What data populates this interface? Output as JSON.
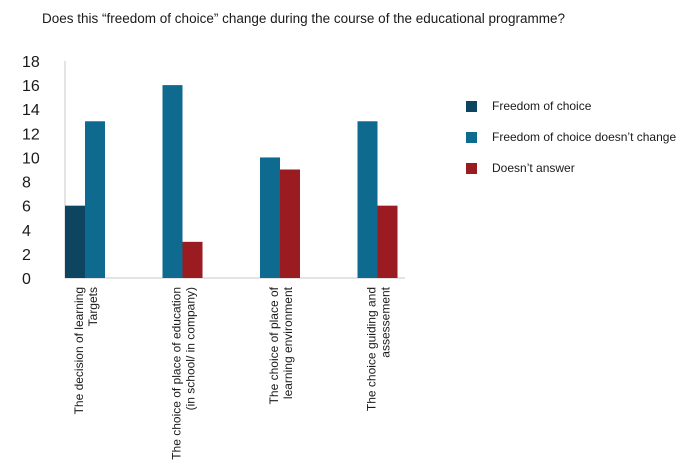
{
  "chart_data": {
    "type": "bar",
    "title": "Does this “freedom of choice” change during the course of the educational programme?",
    "categories": [
      [
        "The decision of learning",
        "Targets"
      ],
      [
        "The choice of place of education",
        "(in school/ in company)"
      ],
      [
        "The choice of place of",
        "learning environment"
      ],
      [
        "The choice guiding and",
        "assessement"
      ]
    ],
    "series": [
      {
        "name": "Freedom of choice",
        "color": "#0d4561",
        "values": [
          6,
          0,
          0,
          0
        ]
      },
      {
        "name": "Freedom of choice doesn’t change",
        "color": "#0f6a8f",
        "values": [
          13,
          16,
          10,
          13
        ]
      },
      {
        "name": "Doesn’t answer",
        "color": "#9a1b20",
        "values": [
          0,
          3,
          9,
          6
        ]
      }
    ],
    "ylim": [
      0,
      18
    ],
    "yticks": [
      0,
      2,
      4,
      6,
      8,
      10,
      12,
      14,
      16,
      18
    ],
    "grid": false,
    "legend": "right"
  }
}
